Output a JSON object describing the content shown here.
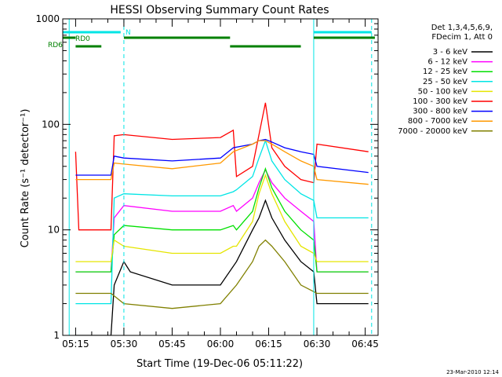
{
  "chart_data": {
    "type": "line",
    "title": "HESSI Observing Summary Count Rates",
    "xlabel": "Start Time (19-Dec-06 05:11:22)",
    "ylabel": "Count Rate (s⁻¹ detector⁻¹)",
    "y_scale": "log",
    "ylim": [
      1,
      1000
    ],
    "xlim": [
      "05:11",
      "06:49"
    ],
    "x_ticks": [
      "05:15",
      "05:30",
      "05:45",
      "06:00",
      "06:15",
      "06:30",
      "06:45"
    ],
    "y_ticks": [
      "1",
      "10",
      "100",
      "1000"
    ],
    "legend_header": [
      "Det 1,3,4,5,6,9,",
      "FDecim 1, Att 0"
    ],
    "legend_position": "right",
    "series": [
      {
        "name": "3 - 6 keV",
        "color": "#000000",
        "x": [
          "05:15",
          "05:26",
          "05:27",
          "05:30",
          "05:32",
          "05:45",
          "06:00",
          "06:05",
          "06:10",
          "06:12",
          "06:14",
          "06:16",
          "06:20",
          "06:25",
          "06:29",
          "06:30",
          "06:46"
        ],
        "y": [
          1,
          1,
          3,
          5,
          4,
          3,
          3,
          5,
          10,
          13,
          19,
          13,
          8,
          5,
          4,
          2,
          2
        ]
      },
      {
        "name": "6 - 12 keV",
        "color": "#ff00ff",
        "x": [
          "05:15",
          "05:26",
          "05:27",
          "05:30",
          "05:45",
          "06:00",
          "06:04",
          "06:05",
          "06:10",
          "06:12",
          "06:14",
          "06:16",
          "06:20",
          "06:25",
          "06:29",
          "06:30",
          "06:46"
        ],
        "y": [
          4,
          4,
          13,
          17,
          15,
          15,
          17,
          15,
          20,
          28,
          37,
          28,
          20,
          15,
          12,
          4,
          4
        ]
      },
      {
        "name": "12 - 25 keV",
        "color": "#00e000",
        "x": [
          "05:15",
          "05:26",
          "05:27",
          "05:30",
          "05:45",
          "06:00",
          "06:04",
          "06:05",
          "06:10",
          "06:12",
          "06:14",
          "06:16",
          "06:20",
          "06:25",
          "06:29",
          "06:30",
          "06:46"
        ],
        "y": [
          4,
          4,
          9,
          11,
          10,
          10,
          11,
          10,
          15,
          25,
          38,
          25,
          15,
          10,
          8,
          4,
          4
        ]
      },
      {
        "name": "25 - 50 keV",
        "color": "#00e5e5",
        "x": [
          "05:15",
          "05:26",
          "05:27",
          "05:30",
          "05:45",
          "06:00",
          "06:04",
          "06:05",
          "06:10",
          "06:12",
          "06:14",
          "06:16",
          "06:20",
          "06:25",
          "06:29",
          "06:30",
          "06:46"
        ],
        "y": [
          2,
          2,
          20,
          22,
          21,
          21,
          23,
          24,
          32,
          48,
          70,
          45,
          30,
          22,
          19,
          13,
          13
        ]
      },
      {
        "name": "50 - 100 keV",
        "color": "#e5e500",
        "x": [
          "05:15",
          "05:26",
          "05:27",
          "05:30",
          "05:45",
          "06:00",
          "06:04",
          "06:05",
          "06:10",
          "06:12",
          "06:14",
          "06:16",
          "06:20",
          "06:25",
          "06:29",
          "06:30",
          "06:46"
        ],
        "y": [
          5,
          5,
          8,
          7,
          6,
          6,
          7,
          7,
          12,
          22,
          33,
          22,
          12,
          7,
          6,
          5,
          5
        ]
      },
      {
        "name": "100 - 300 keV",
        "color": "#ff0000",
        "x": [
          "05:15",
          "05:16",
          "05:26",
          "05:27",
          "05:30",
          "05:45",
          "06:00",
          "06:04",
          "06:05",
          "06:10",
          "06:12",
          "06:14",
          "06:16",
          "06:20",
          "06:25",
          "06:29",
          "06:30",
          "06:46"
        ],
        "y": [
          55,
          10,
          10,
          78,
          80,
          72,
          75,
          88,
          32,
          40,
          80,
          160,
          60,
          40,
          30,
          28,
          65,
          55
        ]
      },
      {
        "name": "300 - 800 keV",
        "color": "#0000ff",
        "x": [
          "05:15",
          "05:26",
          "05:27",
          "05:30",
          "05:45",
          "06:00",
          "06:04",
          "06:10",
          "06:12",
          "06:14",
          "06:16",
          "06:20",
          "06:25",
          "06:29",
          "06:30",
          "06:46"
        ],
        "y": [
          33,
          33,
          50,
          48,
          45,
          48,
          60,
          65,
          70,
          72,
          68,
          60,
          55,
          52,
          40,
          35
        ]
      },
      {
        "name": "800 - 7000 keV",
        "color": "#ff9900",
        "x": [
          "05:15",
          "05:26",
          "05:27",
          "05:30",
          "05:45",
          "06:00",
          "06:04",
          "06:10",
          "06:12",
          "06:14",
          "06:16",
          "06:20",
          "06:25",
          "06:29",
          "06:30",
          "06:46"
        ],
        "y": [
          30,
          30,
          43,
          42,
          38,
          43,
          55,
          65,
          70,
          70,
          65,
          55,
          45,
          40,
          30,
          27
        ]
      },
      {
        "name": "7000 - 20000 keV",
        "color": "#808000",
        "x": [
          "05:15",
          "05:26",
          "05:30",
          "05:45",
          "06:00",
          "06:05",
          "06:10",
          "06:12",
          "06:14",
          "06:16",
          "06:20",
          "06:25",
          "06:30",
          "06:46"
        ],
        "y": [
          2.5,
          2.5,
          2,
          1.8,
          2,
          3,
          5,
          7,
          8,
          7,
          5,
          3,
          2.5,
          2.5
        ]
      }
    ],
    "annotations": {
      "cyan_bar_label": "N",
      "rd0_label": "RD0",
      "rd6_label": "RD6",
      "cyan_vlines_solid": [
        "05:13",
        "06:29"
      ],
      "cyan_vlines_dashed": [
        "05:30",
        "06:47"
      ],
      "cyan_bar_segments": [
        [
          "05:11",
          "05:29"
        ],
        [
          "06:29",
          "06:47"
        ]
      ],
      "rd0_segments": [
        [
          "05:11",
          "05:15"
        ],
        [
          "05:30",
          "06:03"
        ],
        [
          "06:29",
          "06:48"
        ]
      ],
      "rd6_segments": [
        [
          "05:15",
          "05:23"
        ],
        [
          "06:03",
          "06:25"
        ]
      ],
      "colors": {
        "cyan": "#00e5e5",
        "green": "#008000"
      }
    },
    "footer_timestamp": "23-Mar-2010 12:14",
    "grid": false
  }
}
